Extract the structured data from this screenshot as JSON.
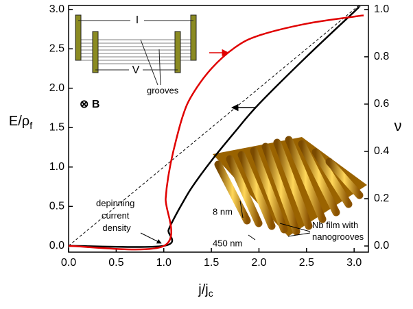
{
  "chart_data": {
    "type": "line",
    "xlabel": {
      "main": "j/j",
      "sub": "c"
    },
    "ylabel": {
      "main": "E/ρ",
      "sub": "f"
    },
    "y2label": "ν",
    "xlim": [
      0,
      3.15
    ],
    "ylim": [
      -0.08,
      3.05
    ],
    "y2lim": [
      -0.026,
      1.017
    ],
    "xticks": [
      {
        "value": 0,
        "label": "0.0"
      },
      0.5,
      {
        "value": 1,
        "label": "1.0"
      },
      1.5,
      {
        "value": 2,
        "label": "2.0"
      },
      2.5,
      {
        "value": 3,
        "label": "3.0"
      }
    ],
    "yticks": [
      {
        "value": 0,
        "label": "0.0"
      },
      0.5,
      {
        "value": 1,
        "label": "1.0"
      },
      1.5,
      {
        "value": 2,
        "label": "2.0"
      },
      2.5,
      {
        "value": 3,
        "label": "3.0"
      }
    ],
    "y2ticks": [
      {
        "value": 0,
        "label": "0.0"
      },
      0.2,
      0.4,
      0.6,
      0.8,
      {
        "value": 1,
        "label": "1.0"
      }
    ],
    "series": [
      {
        "color": "#000000",
        "dashed": true,
        "x": [
          0,
          3.05
        ],
        "values": [
          0,
          3.05
        ]
      },
      {
        "color": "#000000",
        "x": [
          0,
          1,
          1.05,
          1.1,
          1.2,
          1.3,
          1.5,
          1.75,
          2,
          2.5,
          3,
          3.05
        ],
        "values": [
          0,
          0,
          0.2,
          0.33,
          0.55,
          0.75,
          1.08,
          1.45,
          1.8,
          2.4,
          2.97,
          3.03
        ]
      },
      {
        "color": "#e00000",
        "axis": "y2",
        "x": [
          0,
          1,
          1.02,
          1.05,
          1.1,
          1.2,
          1.3,
          1.5,
          1.75,
          2,
          2.5,
          3,
          3.1
        ],
        "values": [
          0,
          0,
          0.2,
          0.3,
          0.4,
          0.55,
          0.64,
          0.75,
          0.84,
          0.89,
          0.94,
          0.97,
          0.975
        ]
      }
    ],
    "annotations": {
      "current": "I",
      "voltage": "V",
      "grooves": "grooves",
      "field": "⊗ B",
      "depinning": [
        "depinning",
        "current",
        "density"
      ],
      "height": "8 nm",
      "period": "450 nm",
      "film": [
        "Nb film with",
        "nanogrooves"
      ]
    }
  }
}
